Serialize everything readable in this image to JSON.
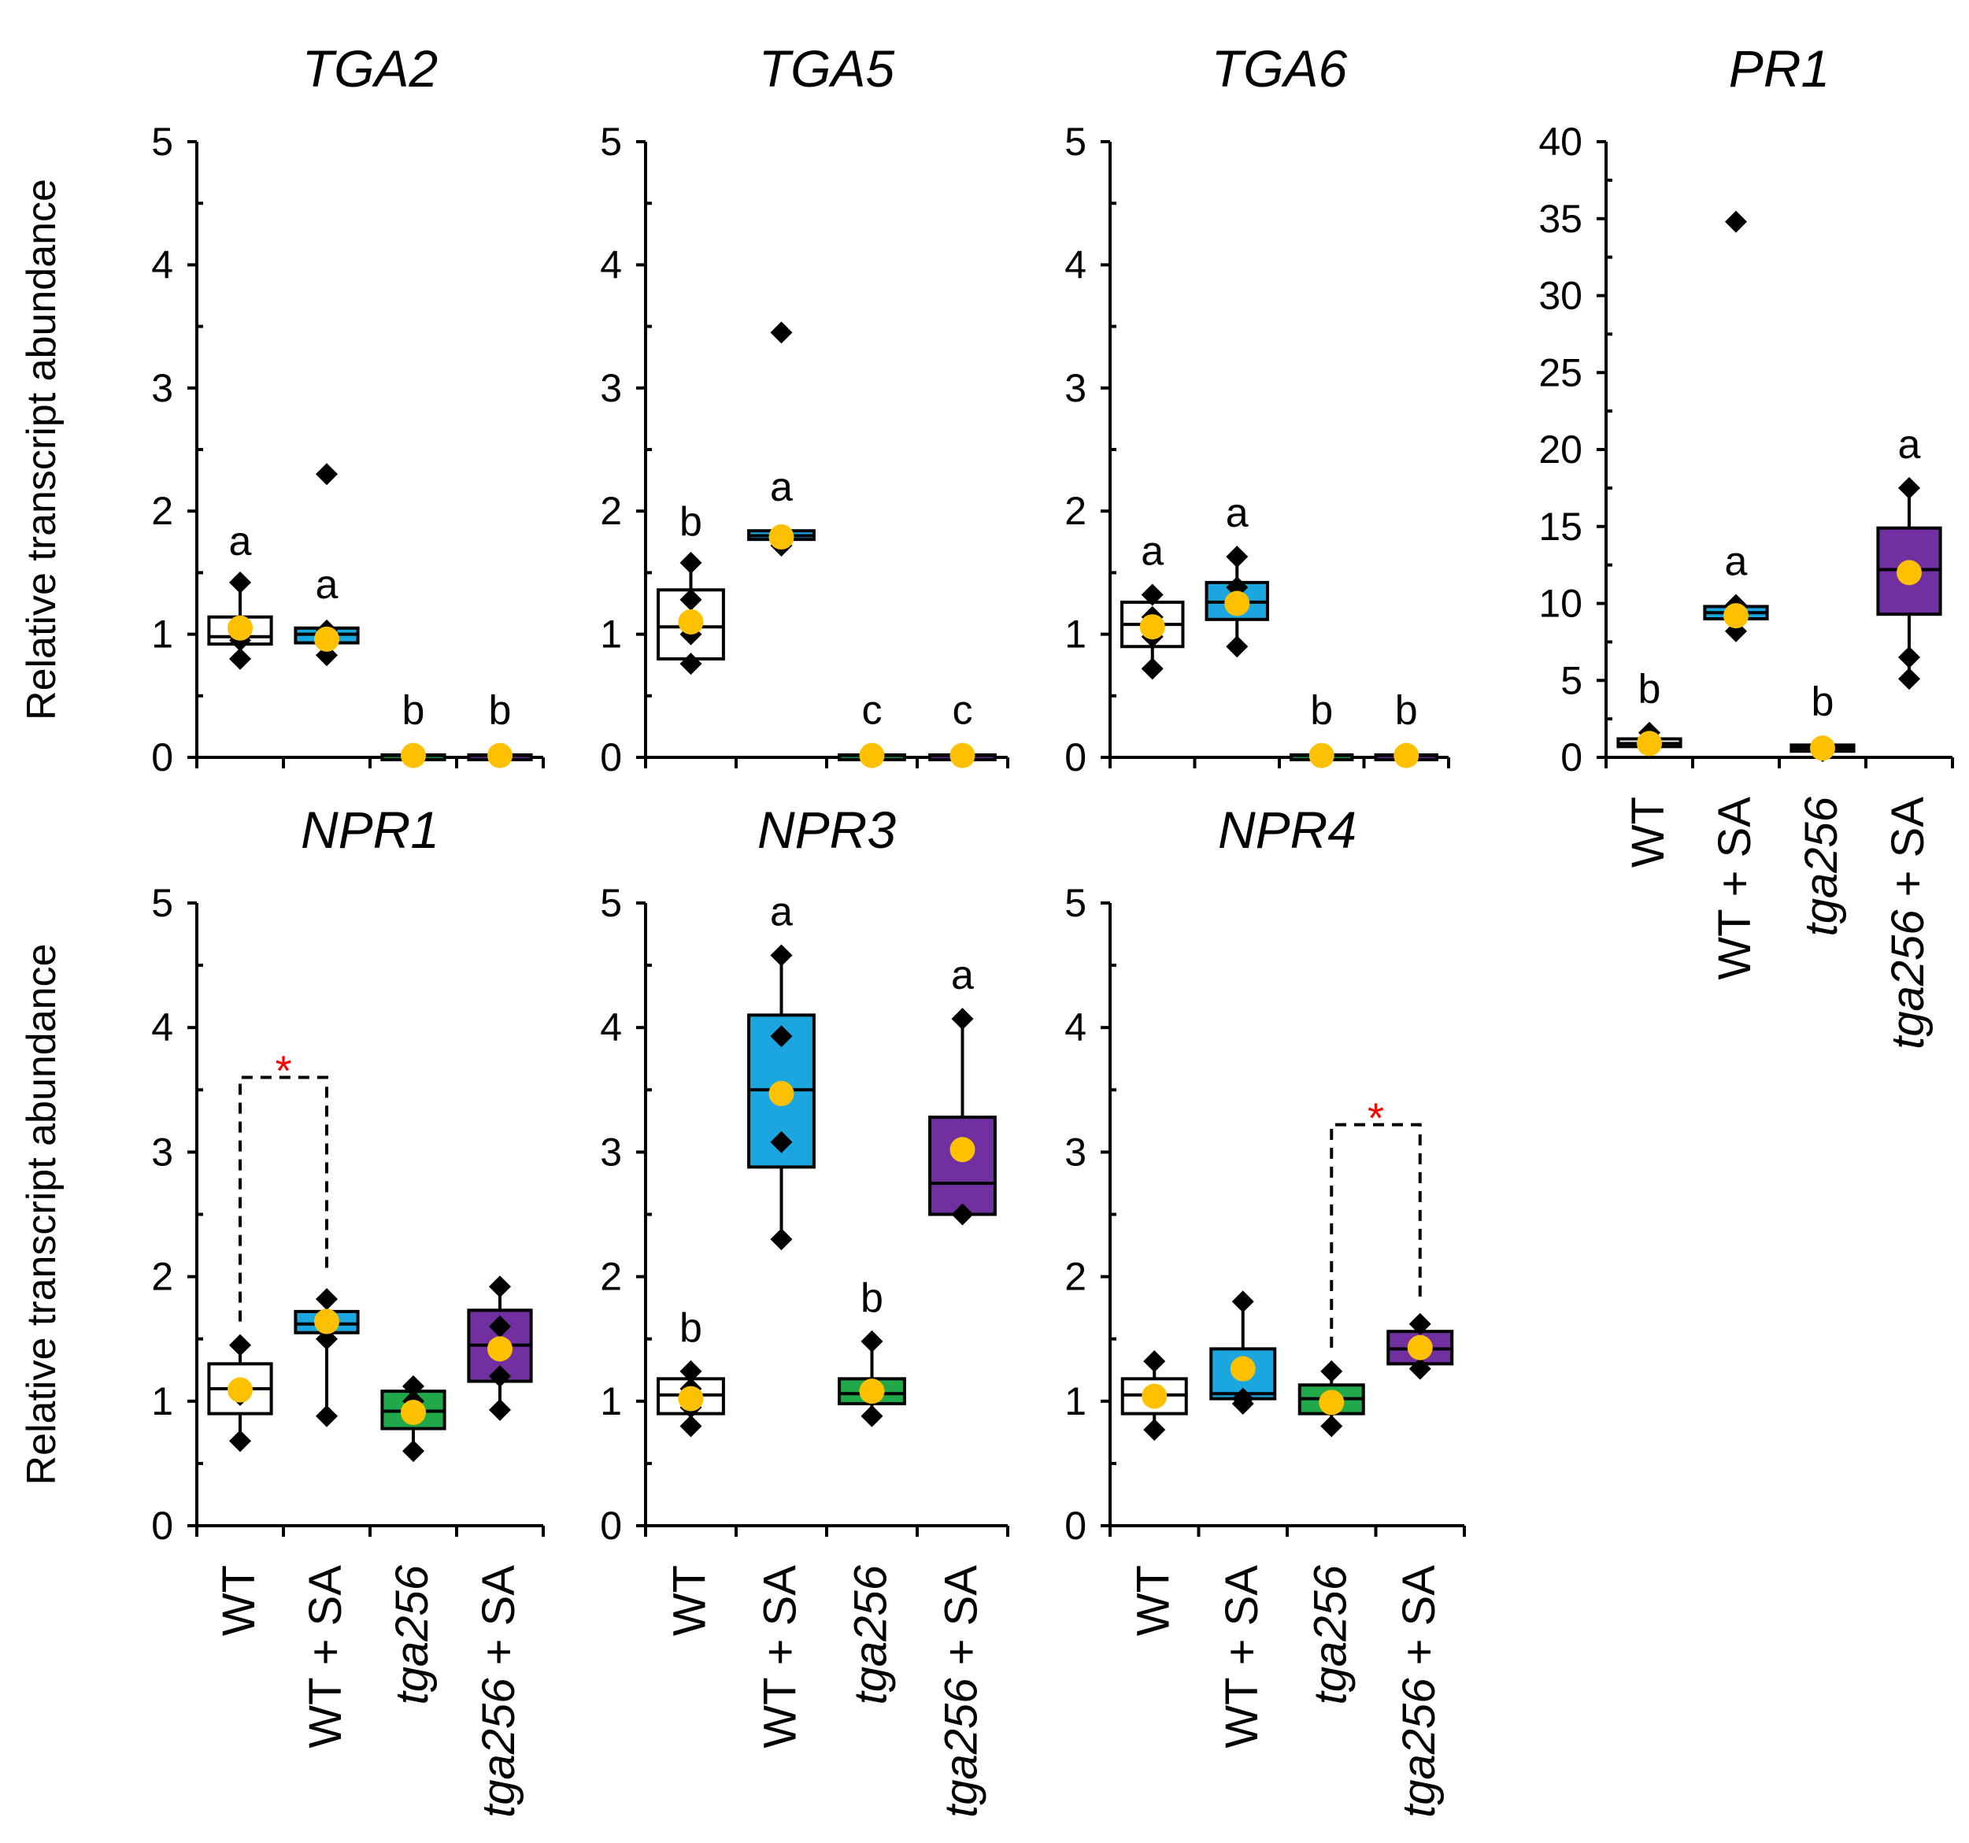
{
  "categories": [
    "WT",
    "WT + SA",
    "tga256",
    "tga256 + SA"
  ],
  "category_italic_part": [
    "",
    "",
    "tga256",
    "tga256"
  ],
  "ylabel": "Relative transcript abundance",
  "colors": {
    "WT": "#ffffff",
    "WT + SA": "#1ca6df",
    "tga256": "#20a84a",
    "tga256 + SA": "#7030a0",
    "mean_marker": "#ffc000",
    "significance_star": "#ff0000"
  },
  "chart_data": [
    {
      "type": "box",
      "title": "TGA2",
      "ylim": [
        0,
        5
      ],
      "yticks": [
        0,
        1,
        2,
        3,
        4,
        5
      ],
      "ylabel": "Relative transcript abundance",
      "groups": [
        {
          "category": "WT",
          "q1": 0.92,
          "median": 0.98,
          "q3": 1.14,
          "whisker_low": 0.82,
          "whisker_high": 1.4,
          "mean": 1.05,
          "points": [
            0.8,
            0.95,
            1.05,
            1.42
          ],
          "outliers": [],
          "letter": "a"
        },
        {
          "category": "WT + SA",
          "q1": 0.93,
          "median": 1.0,
          "q3": 1.05,
          "whisker_low": 0.85,
          "whisker_high": 1.05,
          "mean": 0.96,
          "points": [
            0.83,
            0.97,
            1.03
          ],
          "outliers": [
            2.3
          ],
          "letter": "a"
        },
        {
          "category": "tga256",
          "q1": 0.01,
          "median": 0.015,
          "q3": 0.02,
          "whisker_low": 0.0,
          "whisker_high": 0.03,
          "mean": 0.015,
          "points": [
            0.01
          ],
          "outliers": [],
          "letter": "b"
        },
        {
          "category": "tga256 + SA",
          "q1": 0.01,
          "median": 0.015,
          "q3": 0.02,
          "whisker_low": 0.0,
          "whisker_high": 0.03,
          "mean": 0.015,
          "points": [
            0.01
          ],
          "outliers": [],
          "letter": "b"
        }
      ]
    },
    {
      "type": "box",
      "title": "TGA5",
      "ylim": [
        0,
        5
      ],
      "yticks": [
        0,
        1,
        2,
        3,
        4,
        5
      ],
      "ylabel": "",
      "groups": [
        {
          "category": "WT",
          "q1": 0.8,
          "median": 1.06,
          "q3": 1.36,
          "whisker_low": 0.76,
          "whisker_high": 1.56,
          "mean": 1.1,
          "points": [
            0.76,
            1.0,
            1.28,
            1.58
          ],
          "outliers": [],
          "letter": "b"
        },
        {
          "category": "WT + SA",
          "q1": 1.77,
          "median": 1.8,
          "q3": 1.84,
          "whisker_low": 1.72,
          "whisker_high": 1.84,
          "mean": 1.79,
          "points": [
            1.72,
            1.8
          ],
          "outliers": [
            3.45
          ],
          "letter": "a"
        },
        {
          "category": "tga256",
          "q1": 0.01,
          "median": 0.015,
          "q3": 0.02,
          "whisker_low": 0.0,
          "whisker_high": 0.03,
          "mean": 0.015,
          "points": [
            0.01
          ],
          "outliers": [],
          "letter": "c"
        },
        {
          "category": "tga256 + SA",
          "q1": 0.01,
          "median": 0.015,
          "q3": 0.02,
          "whisker_low": 0.0,
          "whisker_high": 0.03,
          "mean": 0.015,
          "points": [
            0.01
          ],
          "outliers": [],
          "letter": "c"
        }
      ]
    },
    {
      "type": "box",
      "title": "TGA6",
      "ylim": [
        0,
        5
      ],
      "yticks": [
        0,
        1,
        2,
        3,
        4,
        5
      ],
      "ylabel": "",
      "groups": [
        {
          "category": "WT",
          "q1": 0.9,
          "median": 1.08,
          "q3": 1.26,
          "whisker_low": 0.72,
          "whisker_high": 1.32,
          "mean": 1.06,
          "points": [
            0.72,
            0.98,
            1.14,
            1.32
          ],
          "outliers": [],
          "letter": "a"
        },
        {
          "category": "WT + SA",
          "q1": 1.12,
          "median": 1.26,
          "q3": 1.42,
          "whisker_low": 0.9,
          "whisker_high": 1.63,
          "mean": 1.25,
          "points": [
            0.9,
            1.26,
            1.38,
            1.63
          ],
          "outliers": [],
          "letter": "a"
        },
        {
          "category": "tga256",
          "q1": 0.01,
          "median": 0.015,
          "q3": 0.02,
          "whisker_low": 0.0,
          "whisker_high": 0.03,
          "mean": 0.015,
          "points": [
            0.01
          ],
          "outliers": [],
          "letter": "b"
        },
        {
          "category": "tga256 + SA",
          "q1": 0.01,
          "median": 0.015,
          "q3": 0.02,
          "whisker_low": 0.0,
          "whisker_high": 0.03,
          "mean": 0.015,
          "points": [
            0.01
          ],
          "outliers": [],
          "letter": "b"
        }
      ]
    },
    {
      "type": "box",
      "title": "PR1",
      "ylim": [
        0,
        40
      ],
      "yticks": [
        0,
        5,
        10,
        15,
        20,
        25,
        30,
        35,
        40
      ],
      "ylabel": "",
      "groups": [
        {
          "category": "WT",
          "q1": 0.7,
          "median": 0.9,
          "q3": 1.2,
          "whisker_low": 0.5,
          "whisker_high": 1.6,
          "mean": 0.9,
          "points": [
            0.7,
            1.6
          ],
          "outliers": [],
          "letter": "b"
        },
        {
          "category": "WT + SA",
          "q1": 9.0,
          "median": 9.4,
          "q3": 9.8,
          "whisker_low": 8.2,
          "whisker_high": 9.9,
          "mean": 9.2,
          "points": [
            8.2,
            9.4,
            9.9
          ],
          "outliers": [
            34.8
          ],
          "letter": "a"
        },
        {
          "category": "tga256",
          "q1": 0.4,
          "median": 0.6,
          "q3": 0.8,
          "whisker_low": 0.3,
          "whisker_high": 0.8,
          "mean": 0.6,
          "points": [
            0.4,
            0.7
          ],
          "outliers": [],
          "letter": "b"
        },
        {
          "category": "tga256 + SA",
          "q1": 9.3,
          "median": 12.2,
          "q3": 14.9,
          "whisker_low": 5.0,
          "whisker_high": 17.5,
          "mean": 12.0,
          "points": [
            5.1,
            6.5,
            12.0,
            17.5
          ],
          "outliers": [],
          "letter": "a"
        }
      ]
    },
    {
      "type": "box",
      "title": "NPR1",
      "ylim": [
        0,
        5
      ],
      "yticks": [
        0,
        1,
        2,
        3,
        4,
        5
      ],
      "ylabel": "Relative transcript abundance",
      "groups": [
        {
          "category": "WT",
          "q1": 0.9,
          "median": 1.1,
          "q3": 1.3,
          "whisker_low": 0.67,
          "whisker_high": 1.45,
          "mean": 1.09,
          "points": [
            0.68,
            1.05,
            1.45
          ],
          "outliers": [],
          "letter": ""
        },
        {
          "category": "WT + SA",
          "q1": 1.55,
          "median": 1.62,
          "q3": 1.72,
          "whisker_low": 0.88,
          "whisker_high": 1.82,
          "mean": 1.64,
          "points": [
            0.88,
            1.5,
            1.82
          ],
          "outliers": [],
          "letter": ""
        },
        {
          "category": "tga256",
          "q1": 0.78,
          "median": 0.92,
          "q3": 1.08,
          "whisker_low": 0.6,
          "whisker_high": 1.14,
          "mean": 0.91,
          "points": [
            0.6,
            1.0,
            1.12
          ],
          "outliers": [],
          "letter": ""
        },
        {
          "category": "tga256 + SA",
          "q1": 1.16,
          "median": 1.45,
          "q3": 1.73,
          "whisker_low": 0.92,
          "whisker_high": 1.92,
          "mean": 1.42,
          "points": [
            0.93,
            1.2,
            1.6,
            1.92
          ],
          "outliers": [],
          "letter": ""
        }
      ],
      "significance": [
        {
          "from": 0,
          "to": 1,
          "y": 3.6,
          "label": "*"
        }
      ]
    },
    {
      "type": "box",
      "title": "NPR3",
      "ylim": [
        0,
        5
      ],
      "yticks": [
        0,
        1,
        2,
        3,
        4,
        5
      ],
      "ylabel": "",
      "groups": [
        {
          "category": "WT",
          "q1": 0.9,
          "median": 1.05,
          "q3": 1.18,
          "whisker_low": 0.8,
          "whisker_high": 1.24,
          "mean": 1.02,
          "points": [
            0.8,
            0.95,
            1.1,
            1.24
          ],
          "outliers": [],
          "letter": "b"
        },
        {
          "category": "WT + SA",
          "q1": 2.88,
          "median": 3.5,
          "q3": 4.1,
          "whisker_low": 2.3,
          "whisker_high": 4.58,
          "mean": 3.47,
          "points": [
            2.3,
            3.08,
            3.93,
            4.58
          ],
          "outliers": [],
          "letter": "a"
        },
        {
          "category": "tga256",
          "q1": 0.98,
          "median": 1.06,
          "q3": 1.18,
          "whisker_low": 0.88,
          "whisker_high": 1.48,
          "mean": 1.08,
          "points": [
            0.88,
            1.1,
            1.48
          ],
          "outliers": [],
          "letter": "b"
        },
        {
          "category": "tga256 + SA",
          "q1": 2.5,
          "median": 2.75,
          "q3": 3.28,
          "whisker_low": 2.48,
          "whisker_high": 4.07,
          "mean": 3.02,
          "points": [
            2.5,
            3.02,
            4.07
          ],
          "outliers": [],
          "letter": "a"
        }
      ]
    },
    {
      "type": "box",
      "title": "NPR4",
      "ylim": [
        0,
        5
      ],
      "yticks": [
        0,
        1,
        2,
        3,
        4,
        5
      ],
      "ylabel": "",
      "groups": [
        {
          "category": "WT",
          "q1": 0.9,
          "median": 1.05,
          "q3": 1.18,
          "whisker_low": 0.77,
          "whisker_high": 1.32,
          "mean": 1.04,
          "points": [
            0.77,
            1.05,
            1.32
          ],
          "outliers": [],
          "letter": ""
        },
        {
          "category": "WT + SA",
          "q1": 1.02,
          "median": 1.06,
          "q3": 1.42,
          "whisker_low": 0.98,
          "whisker_high": 1.8,
          "mean": 1.26,
          "points": [
            0.98,
            1.02,
            1.8
          ],
          "outliers": [],
          "letter": ""
        },
        {
          "category": "tga256",
          "q1": 0.9,
          "median": 1.02,
          "q3": 1.13,
          "whisker_low": 0.8,
          "whisker_high": 1.24,
          "mean": 0.99,
          "points": [
            0.8,
            1.0,
            1.24
          ],
          "outliers": [],
          "letter": ""
        },
        {
          "category": "tga256 + SA",
          "q1": 1.3,
          "median": 1.42,
          "q3": 1.56,
          "whisker_low": 1.24,
          "whisker_high": 1.62,
          "mean": 1.43,
          "points": [
            1.26,
            1.43,
            1.62
          ],
          "outliers": [],
          "letter": ""
        }
      ],
      "significance": [
        {
          "from": 2,
          "to": 3,
          "y": 3.22,
          "label": "*"
        }
      ]
    }
  ]
}
